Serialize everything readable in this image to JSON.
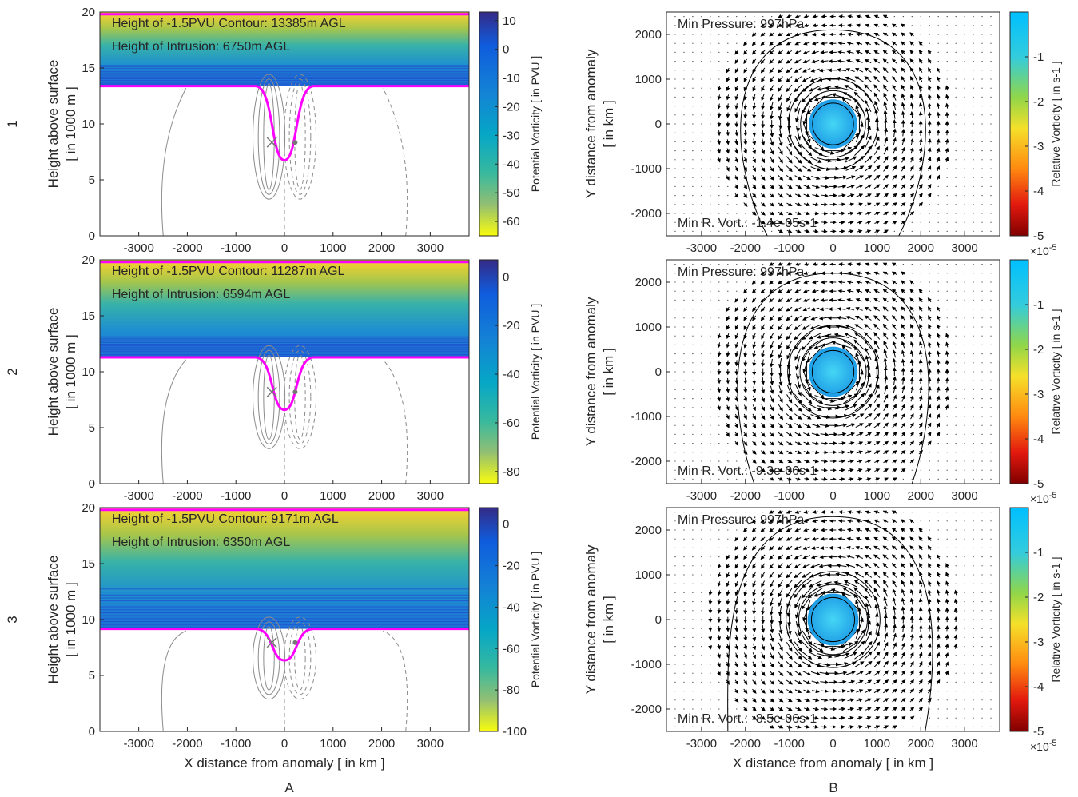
{
  "figure": {
    "column_labels": [
      "A",
      "B"
    ],
    "row_labels": [
      "1",
      "2",
      "3"
    ]
  },
  "colors": {
    "pv_top": "#fbd22e",
    "pv_mid": "#3ab3b3",
    "pv_low": "#1e6fd6",
    "contour_blue": "#1f4fd0",
    "magenta_contour": "#ff00ff",
    "grey_contour": "#808080",
    "vortex_fill": "#2ab4ea",
    "arrow": "#000000"
  },
  "chart_data": [
    {
      "type": "heatmap",
      "panel": "A1",
      "annotations": [
        "Height of -1.5PVU Contour: 13385m AGL",
        "Height of Intrusion: 6750m AGL"
      ],
      "xlabel": "",
      "ylabel": [
        "Height above surface",
        "[ in 1000 m ]"
      ],
      "xlim": [
        -3800,
        3800
      ],
      "ylim": [
        0,
        20
      ],
      "xticks": [
        -3000,
        -2000,
        -1000,
        0,
        1000,
        2000,
        3000
      ],
      "yticks": [
        0,
        5,
        10,
        15,
        20
      ],
      "pv_contour_height_m": 13385,
      "intrusion_height_m": 6750,
      "colorbar": {
        "label": "Potential Vorticity [ in PVU ]",
        "ticks": [
          10,
          0,
          -10,
          -20,
          -30,
          -40,
          -50,
          -60
        ],
        "range": [
          -65,
          13
        ]
      }
    },
    {
      "type": "heatmap",
      "panel": "A2",
      "annotations": [
        "Height of -1.5PVU Contour: 11287m AGL",
        "Height of Intrusion: 6594m AGL"
      ],
      "xlabel": "",
      "ylabel": [
        "Height above surface",
        "[ in 1000 m ]"
      ],
      "xlim": [
        -3800,
        3800
      ],
      "ylim": [
        0,
        20
      ],
      "xticks": [
        -3000,
        -2000,
        -1000,
        0,
        1000,
        2000,
        3000
      ],
      "yticks": [
        0,
        5,
        10,
        15,
        20
      ],
      "pv_contour_height_m": 11287,
      "intrusion_height_m": 6594,
      "colorbar": {
        "label": "Potential Vorticity [ in PVU ]",
        "ticks": [
          0,
          -20,
          -40,
          -60,
          -80
        ],
        "range": [
          -85,
          7
        ]
      }
    },
    {
      "type": "heatmap",
      "panel": "A3",
      "annotations": [
        "Height of -1.5PVU Contour: 9171m AGL",
        "Height of Intrusion: 6350m AGL"
      ],
      "xlabel": "X distance from anomaly [ in km ]",
      "ylabel": [
        "Height above surface",
        "[ in 1000 m ]"
      ],
      "xlim": [
        -3800,
        3800
      ],
      "ylim": [
        0,
        20
      ],
      "xticks": [
        -3000,
        -2000,
        -1000,
        0,
        1000,
        2000,
        3000
      ],
      "yticks": [
        0,
        5,
        10,
        15,
        20
      ],
      "pv_contour_height_m": 9171,
      "intrusion_height_m": 6350,
      "colorbar": {
        "label": "Potential Vorticity [ in PVU ]",
        "ticks": [
          0,
          -20,
          -40,
          -60,
          -80,
          -100
        ],
        "range": [
          -100,
          8
        ]
      }
    },
    {
      "type": "heatmap",
      "panel": "B1",
      "annotations": [
        "Min Pressure: 997hPa",
        "Min R. Vort.: -1.4e-05s-1"
      ],
      "xlabel": "",
      "ylabel": [
        "Y distance from anomaly",
        "[ in km ]"
      ],
      "xlim": [
        -3800,
        3800
      ],
      "ylim": [
        -2500,
        2500
      ],
      "xticks": [
        -3000,
        -2000,
        -1000,
        0,
        1000,
        2000,
        3000
      ],
      "yticks": [
        -2000,
        -1000,
        0,
        1000,
        2000
      ],
      "vortex_radius_km": 550,
      "outer_contour_top_km": 2100,
      "outer_contour_base_km": [
        -1500,
        1500
      ],
      "colorbar": {
        "label": "Relative Vorticity [ in s-1 ]",
        "ticks": [
          "-1",
          "-2",
          "-3",
          "-4",
          "-5"
        ],
        "range": [
          -5,
          0
        ],
        "exponent": "×10",
        "exponent_power": "-5"
      }
    },
    {
      "type": "heatmap",
      "panel": "B2",
      "annotations": [
        "Min Pressure: 997hPa",
        "Min R. Vort.: -9.3e-06s-1"
      ],
      "xlabel": "",
      "ylabel": [
        "Y distance from anomaly",
        "[ in km ]"
      ],
      "xlim": [
        -3800,
        3800
      ],
      "ylim": [
        -2500,
        2500
      ],
      "xticks": [
        -3000,
        -2000,
        -1000,
        0,
        1000,
        2000,
        3000
      ],
      "yticks": [
        -2000,
        -1000,
        0,
        1000,
        2000
      ],
      "vortex_radius_km": 560,
      "outer_contour_top_km": 2200,
      "outer_contour_base_km": [
        -1800,
        1800
      ],
      "colorbar": {
        "label": "Relative Vorticity [ in s-1 ]",
        "ticks": [
          "-1",
          "-2",
          "-3",
          "-4",
          "-5"
        ],
        "range": [
          -5,
          0
        ],
        "exponent": "×10",
        "exponent_power": "-5"
      }
    },
    {
      "type": "heatmap",
      "panel": "B3",
      "annotations": [
        "Min Pressure: 997hPa",
        "Min R. Vort.: -8.5e-06s-1"
      ],
      "xlabel": "X distance from anomaly [ in km ]",
      "ylabel": [
        "Y distance from anomaly",
        "[ in km ]"
      ],
      "xlim": [
        -3800,
        3800
      ],
      "ylim": [
        -2500,
        2500
      ],
      "xticks": [
        -3000,
        -2000,
        -1000,
        0,
        1000,
        2000,
        3000
      ],
      "yticks": [
        -2000,
        -1000,
        0,
        1000,
        2000
      ],
      "vortex_radius_km": 580,
      "outer_contour_top_km": 2300,
      "outer_contour_base_km": [
        -2400,
        2100
      ],
      "colorbar": {
        "label": "Relative Vorticity [ in s-1 ]",
        "ticks": [
          "-1",
          "-2",
          "-3",
          "-4",
          "-5"
        ],
        "range": [
          -5,
          0
        ],
        "exponent": "×10",
        "exponent_power": "-5"
      }
    }
  ]
}
